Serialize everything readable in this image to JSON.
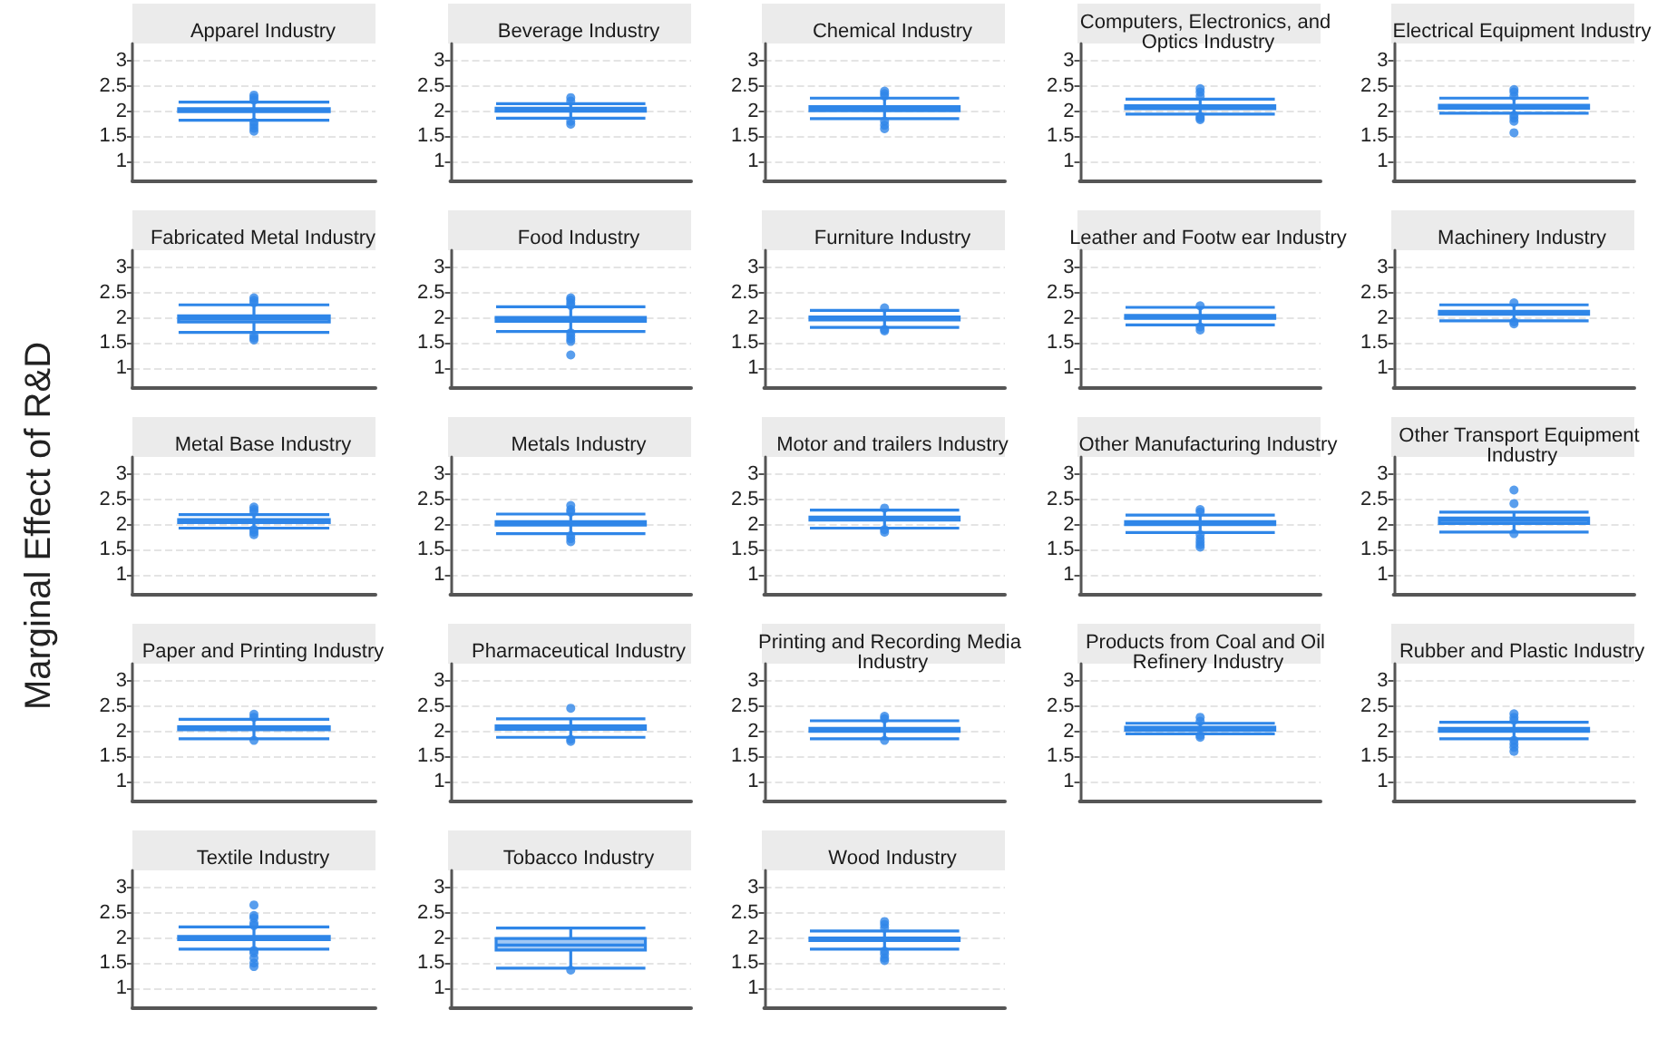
{
  "chart_data": [
    {
      "type": "box",
      "title": "Apparel Industry",
      "categories": [
        null
      ],
      "ylim": [
        0.6,
        3.35
      ],
      "yticks": [
        1,
        1.5,
        2,
        2.5,
        3
      ],
      "grid": "y",
      "tick_labels": "y",
      "series": [
        {
          "color": "#2f86e8",
          "boxes": [
            {
              "low": 1.82,
              "q1": 1.99,
              "median": 2.02,
              "q3": 2.05,
              "high": 2.18,
              "outliers": [
                2.22,
                2.27,
                2.32,
                1.78,
                1.72,
                1.66,
                1.6
              ]
            }
          ]
        }
      ]
    },
    {
      "type": "box",
      "title": "Beverage Industry",
      "categories": [
        null
      ],
      "ylim": [
        0.6,
        3.35
      ],
      "yticks": [
        1,
        1.5,
        2,
        2.5,
        3
      ],
      "grid": "y",
      "tick_labels": "y",
      "series": [
        {
          "color": "#2f86e8",
          "boxes": [
            {
              "low": 1.86,
              "q1": 2.0,
              "median": 2.03,
              "q3": 2.06,
              "high": 2.15,
              "outliers": [
                2.2,
                2.27,
                1.8,
                1.74
              ]
            }
          ]
        }
      ]
    },
    {
      "type": "box",
      "title": "Chemical Industry",
      "categories": [
        null
      ],
      "ylim": [
        0.6,
        3.35
      ],
      "yticks": [
        1,
        1.5,
        2,
        2.5,
        3
      ],
      "grid": "y",
      "tick_labels": "y",
      "series": [
        {
          "color": "#2f86e8",
          "boxes": [
            {
              "low": 1.85,
              "q1": 2.01,
              "median": 2.06,
              "q3": 2.09,
              "high": 2.26,
              "outliers": [
                2.3,
                2.35,
                2.4,
                1.8,
                1.72,
                1.65
              ]
            }
          ]
        }
      ]
    },
    {
      "type": "box",
      "title": "Computers, Electronics, and Optics Industry",
      "categories": [
        null
      ],
      "ylim": [
        0.6,
        3.35
      ],
      "yticks": [
        1,
        1.5,
        2,
        2.5,
        3
      ],
      "grid": "y",
      "tick_labels": "y",
      "series": [
        {
          "color": "#2f86e8",
          "boxes": [
            {
              "low": 1.94,
              "q1": 2.05,
              "median": 2.08,
              "q3": 2.11,
              "high": 2.24,
              "outliers": [
                2.3,
                2.38,
                2.45,
                1.9,
                1.86,
                1.83
              ]
            }
          ]
        }
      ]
    },
    {
      "type": "box",
      "title": "Electrical Equipment Industry",
      "categories": [
        null
      ],
      "ylim": [
        0.6,
        3.35
      ],
      "yticks": [
        1,
        1.5,
        2,
        2.5,
        3
      ],
      "grid": "y",
      "tick_labels": "y",
      "series": [
        {
          "color": "#2f86e8",
          "boxes": [
            {
              "low": 1.96,
              "q1": 2.06,
              "median": 2.09,
              "q3": 2.12,
              "high": 2.26,
              "outliers": [
                2.3,
                2.38,
                2.43,
                1.92,
                1.86,
                1.8,
                1.57
              ]
            }
          ]
        }
      ]
    },
    {
      "type": "box",
      "title": "Fabricated Metal Industry",
      "categories": [
        null
      ],
      "ylim": [
        0.6,
        3.35
      ],
      "yticks": [
        1,
        1.5,
        2,
        2.5,
        3
      ],
      "grid": "y",
      "tick_labels": "y",
      "series": [
        {
          "color": "#2f86e8",
          "boxes": [
            {
              "low": 1.71,
              "q1": 1.92,
              "median": 1.98,
              "q3": 2.04,
              "high": 2.26,
              "outliers": [
                2.3,
                2.35,
                2.4,
                1.65,
                1.6,
                1.56
              ]
            }
          ]
        }
      ]
    },
    {
      "type": "box",
      "title": "Food Industry",
      "categories": [
        null
      ],
      "ylim": [
        0.6,
        3.35
      ],
      "yticks": [
        1,
        1.5,
        2,
        2.5,
        3
      ],
      "grid": "y",
      "tick_labels": "y",
      "series": [
        {
          "color": "#2f86e8",
          "boxes": [
            {
              "low": 1.73,
              "q1": 1.93,
              "median": 1.97,
              "q3": 2.01,
              "high": 2.22,
              "outliers": [
                2.25,
                2.3,
                2.36,
                2.4,
                1.7,
                1.64,
                1.58,
                1.53,
                1.26
              ]
            }
          ]
        }
      ]
    },
    {
      "type": "box",
      "title": "Furniture Industry",
      "categories": [
        null
      ],
      "ylim": [
        0.6,
        3.35
      ],
      "yticks": [
        1,
        1.5,
        2,
        2.5,
        3
      ],
      "grid": "y",
      "tick_labels": "y",
      "series": [
        {
          "color": "#2f86e8",
          "boxes": [
            {
              "low": 1.81,
              "q1": 1.96,
              "median": 1.99,
              "q3": 2.02,
              "high": 2.15,
              "outliers": [
                2.2,
                1.77,
                1.74
              ]
            }
          ]
        }
      ]
    },
    {
      "type": "box",
      "title": "Leather and Footw ear Industry",
      "categories": [
        null
      ],
      "ylim": [
        0.6,
        3.35
      ],
      "yticks": [
        1,
        1.5,
        2,
        2.5,
        3
      ],
      "grid": "y",
      "tick_labels": "y",
      "series": [
        {
          "color": "#2f86e8",
          "boxes": [
            {
              "low": 1.86,
              "q1": 1.99,
              "median": 2.02,
              "q3": 2.05,
              "high": 2.21,
              "outliers": [
                2.24,
                1.82,
                1.76
              ]
            }
          ]
        }
      ]
    },
    {
      "type": "box",
      "title": "Machinery Industry",
      "categories": [
        null
      ],
      "ylim": [
        0.6,
        3.35
      ],
      "yticks": [
        1,
        1.5,
        2,
        2.5,
        3
      ],
      "grid": "y",
      "tick_labels": "y",
      "series": [
        {
          "color": "#2f86e8",
          "boxes": [
            {
              "low": 1.94,
              "q1": 2.07,
              "median": 2.1,
              "q3": 2.13,
              "high": 2.26,
              "outliers": [
                2.3,
                1.92,
                1.88
              ]
            }
          ]
        }
      ]
    },
    {
      "type": "box",
      "title": "Metal Base Industry",
      "ylabel": "Marginal Effect of R&D",
      "categories": [
        null
      ],
      "ylim": [
        0.6,
        3.35
      ],
      "yticks": [
        1,
        1.5,
        2,
        2.5,
        3
      ],
      "grid": "y",
      "tick_labels": "y",
      "series": [
        {
          "color": "#2f86e8",
          "boxes": [
            {
              "low": 1.93,
              "q1": 2.04,
              "median": 2.07,
              "q3": 2.1,
              "high": 2.2,
              "outliers": [
                2.25,
                2.3,
                2.35,
                1.9,
                1.85,
                1.8
              ]
            }
          ]
        }
      ]
    },
    {
      "type": "box",
      "title": "Metals Industry",
      "categories": [
        null
      ],
      "ylim": [
        0.6,
        3.35
      ],
      "yticks": [
        1,
        1.5,
        2,
        2.5,
        3
      ],
      "grid": "y",
      "tick_labels": "y",
      "series": [
        {
          "color": "#2f86e8",
          "boxes": [
            {
              "low": 1.82,
              "q1": 1.99,
              "median": 2.02,
              "q3": 2.06,
              "high": 2.21,
              "outliers": [
                2.25,
                2.3,
                2.38,
                1.78,
                1.72,
                1.66
              ]
            }
          ]
        }
      ]
    },
    {
      "type": "box",
      "title": "Motor and trailers Industry",
      "categories": [
        null
      ],
      "ylim": [
        0.6,
        3.35
      ],
      "yticks": [
        1,
        1.5,
        2,
        2.5,
        3
      ],
      "grid": "y",
      "tick_labels": "y",
      "series": [
        {
          "color": "#2f86e8",
          "boxes": [
            {
              "low": 1.93,
              "q1": 2.09,
              "median": 2.12,
              "q3": 2.15,
              "high": 2.29,
              "outliers": [
                2.33,
                1.9,
                1.85
              ]
            }
          ]
        }
      ]
    },
    {
      "type": "box",
      "title": "Other Manufacturing Industry",
      "categories": [
        null
      ],
      "ylim": [
        0.6,
        3.35
      ],
      "yticks": [
        1,
        1.5,
        2,
        2.5,
        3
      ],
      "grid": "y",
      "tick_labels": "y",
      "series": [
        {
          "color": "#2f86e8",
          "boxes": [
            {
              "low": 1.84,
              "q1": 2.0,
              "median": 2.03,
              "q3": 2.06,
              "high": 2.19,
              "outliers": [
                2.25,
                2.3,
                1.8,
                1.72,
                1.66,
                1.6,
                1.55
              ]
            }
          ]
        }
      ]
    },
    {
      "type": "box",
      "title": "Other Transport Equipment Industry",
      "categories": [
        null
      ],
      "ylim": [
        0.6,
        3.35
      ],
      "yticks": [
        1,
        1.5,
        2,
        2.5,
        3
      ],
      "grid": "y",
      "tick_labels": "y",
      "series": [
        {
          "color": "#2f86e8",
          "boxes": [
            {
              "low": 1.85,
              "q1": 2.02,
              "median": 2.08,
              "q3": 2.13,
              "high": 2.25,
              "outliers": [
                2.42,
                2.69,
                1.82
              ]
            }
          ]
        }
      ]
    },
    {
      "type": "box",
      "title": "Paper and Printing Industry",
      "categories": [
        null
      ],
      "ylim": [
        0.6,
        3.35
      ],
      "yticks": [
        1,
        1.5,
        2,
        2.5,
        3
      ],
      "grid": "y",
      "tick_labels": "y",
      "series": [
        {
          "color": "#2f86e8",
          "boxes": [
            {
              "low": 1.85,
              "q1": 2.03,
              "median": 2.06,
              "q3": 2.09,
              "high": 2.24,
              "outliers": [
                2.28,
                2.34,
                1.82
              ]
            }
          ]
        }
      ]
    },
    {
      "type": "box",
      "title": "Pharmaceutical Industry",
      "categories": [
        null
      ],
      "ylim": [
        0.6,
        3.35
      ],
      "yticks": [
        1,
        1.5,
        2,
        2.5,
        3
      ],
      "grid": "y",
      "tick_labels": "y",
      "series": [
        {
          "color": "#2f86e8",
          "boxes": [
            {
              "low": 1.88,
              "q1": 2.04,
              "median": 2.08,
              "q3": 2.11,
              "high": 2.25,
              "outliers": [
                2.46,
                1.84,
                1.8
              ]
            }
          ]
        }
      ]
    },
    {
      "type": "box",
      "title": "Printing and Recording Media Industry",
      "categories": [
        null
      ],
      "ylim": [
        0.6,
        3.35
      ],
      "yticks": [
        1,
        1.5,
        2,
        2.5,
        3
      ],
      "grid": "y",
      "tick_labels": "y",
      "series": [
        {
          "color": "#2f86e8",
          "boxes": [
            {
              "low": 1.85,
              "q1": 2.0,
              "median": 2.03,
              "q3": 2.06,
              "high": 2.21,
              "outliers": [
                2.25,
                2.3,
                1.82
              ]
            }
          ]
        }
      ]
    },
    {
      "type": "box",
      "title": "Products from Coal and Oil Refinery Industry",
      "categories": [
        null
      ],
      "ylim": [
        0.6,
        3.35
      ],
      "yticks": [
        1,
        1.5,
        2,
        2.5,
        3
      ],
      "grid": "y",
      "tick_labels": "y",
      "series": [
        {
          "color": "#2f86e8",
          "boxes": [
            {
              "low": 1.95,
              "q1": 2.02,
              "median": 2.05,
              "q3": 2.08,
              "high": 2.16,
              "outliers": [
                2.2,
                2.28,
                1.92,
                1.88
              ]
            }
          ]
        }
      ]
    },
    {
      "type": "box",
      "title": "Rubber and Plastic Industry",
      "categories": [
        null
      ],
      "ylim": [
        0.6,
        3.35
      ],
      "yticks": [
        1,
        1.5,
        2,
        2.5,
        3
      ],
      "grid": "y",
      "tick_labels": "y",
      "series": [
        {
          "color": "#2f86e8",
          "boxes": [
            {
              "low": 1.85,
              "q1": 2.0,
              "median": 2.03,
              "q3": 2.06,
              "high": 2.18,
              "outliers": [
                2.22,
                2.28,
                2.35,
                1.82,
                1.75,
                1.68,
                1.6
              ]
            }
          ]
        }
      ]
    },
    {
      "type": "box",
      "title": "Textile Industry",
      "categories": [
        null
      ],
      "ylim": [
        0.6,
        3.35
      ],
      "yticks": [
        1,
        1.5,
        2,
        2.5,
        3
      ],
      "grid": "y",
      "tick_labels": "y",
      "series": [
        {
          "color": "#2f86e8",
          "boxes": [
            {
              "low": 1.78,
              "q1": 1.97,
              "median": 2.0,
              "q3": 2.03,
              "high": 2.22,
              "outliers": [
                2.25,
                2.3,
                2.4,
                2.45,
                2.66,
                1.75,
                1.7,
                1.6,
                1.5,
                1.43
              ]
            }
          ]
        }
      ]
    },
    {
      "type": "box",
      "title": "Tobacco Industry",
      "categories": [
        null
      ],
      "ylim": [
        0.6,
        3.35
      ],
      "yticks": [
        1,
        1.5,
        2,
        2.5,
        3
      ],
      "grid": "y",
      "tick_labels": "y",
      "series": [
        {
          "color": "#2f86e8",
          "boxes": [
            {
              "low": 1.4,
              "q1": 1.76,
              "median": 1.86,
              "q3": 1.99,
              "high": 2.2,
              "outliers": [
                1.36
              ]
            }
          ]
        }
      ]
    },
    {
      "type": "box",
      "title": "Wood Industry",
      "categories": [
        null
      ],
      "ylim": [
        0.6,
        3.35
      ],
      "yticks": [
        1,
        1.5,
        2,
        2.5,
        3
      ],
      "grid": "y",
      "tick_labels": "y",
      "series": [
        {
          "color": "#2f86e8",
          "boxes": [
            {
              "low": 1.78,
              "q1": 1.95,
              "median": 1.97,
              "q3": 2.0,
              "high": 2.14,
              "outliers": [
                2.2,
                2.27,
                2.33,
                1.74,
                1.68,
                1.6,
                1.55
              ]
            }
          ]
        }
      ]
    }
  ]
}
